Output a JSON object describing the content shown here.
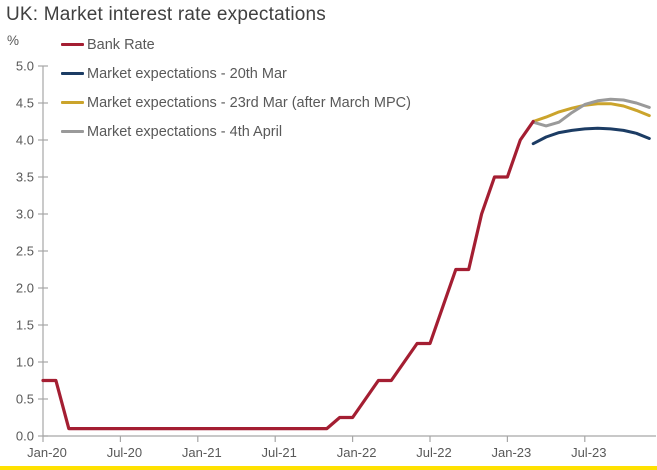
{
  "window": {
    "background": "#ffffff",
    "accent_bar_color": "#FFE100"
  },
  "chart_data": {
    "type": "line",
    "title": "UK: Market interest rate expectations",
    "y_unit": "%",
    "xlabel": "",
    "ylabel": "%",
    "ylim": [
      0.0,
      5.0
    ],
    "y_ticks": [
      0.0,
      0.5,
      1.0,
      1.5,
      2.0,
      2.5,
      3.0,
      3.5,
      4.0,
      4.5,
      5.0
    ],
    "x_tick_labels": [
      "Jan-20",
      "Jul-20",
      "Jan-21",
      "Jul-21",
      "Jan-22",
      "Jul-22",
      "Jan-23",
      "Jul-23"
    ],
    "x_months_per_tick": 6,
    "x_start": "Jan-20",
    "x_end": "Dec-23",
    "grid": false,
    "legend_position": "top-left",
    "axis_color": "#A6A6A6",
    "label_color": "#595959",
    "title_color": "#404040",
    "series": [
      {
        "name": "Bank Rate",
        "color": "#A41E32",
        "width": 3.2,
        "x_start_month": 0,
        "values": [
          0.75,
          0.75,
          0.1,
          0.1,
          0.1,
          0.1,
          0.1,
          0.1,
          0.1,
          0.1,
          0.1,
          0.1,
          0.1,
          0.1,
          0.1,
          0.1,
          0.1,
          0.1,
          0.1,
          0.1,
          0.1,
          0.1,
          0.1,
          0.25,
          0.25,
          0.5,
          0.75,
          0.75,
          1.0,
          1.25,
          1.25,
          1.75,
          2.25,
          2.25,
          3.0,
          3.5,
          3.5,
          4.0,
          4.25
        ]
      },
      {
        "name": "Market expectations - 20th Mar",
        "color": "#1C3C64",
        "width": 3,
        "x_start_month": 38,
        "values": [
          3.95,
          4.04,
          4.1,
          4.13,
          4.15,
          4.16,
          4.15,
          4.13,
          4.09,
          4.02
        ]
      },
      {
        "name": "Market expectations - 23rd Mar (after March MPC)",
        "color": "#CBA42C",
        "width": 3,
        "x_start_month": 38,
        "values": [
          4.25,
          4.31,
          4.38,
          4.43,
          4.47,
          4.49,
          4.49,
          4.46,
          4.4,
          4.33
        ]
      },
      {
        "name": "Market expectations - 4th April",
        "color": "#9A9A9A",
        "width": 3,
        "x_start_month": 38,
        "values": [
          4.24,
          4.19,
          4.24,
          4.37,
          4.48,
          4.53,
          4.55,
          4.54,
          4.5,
          4.44
        ]
      }
    ]
  }
}
